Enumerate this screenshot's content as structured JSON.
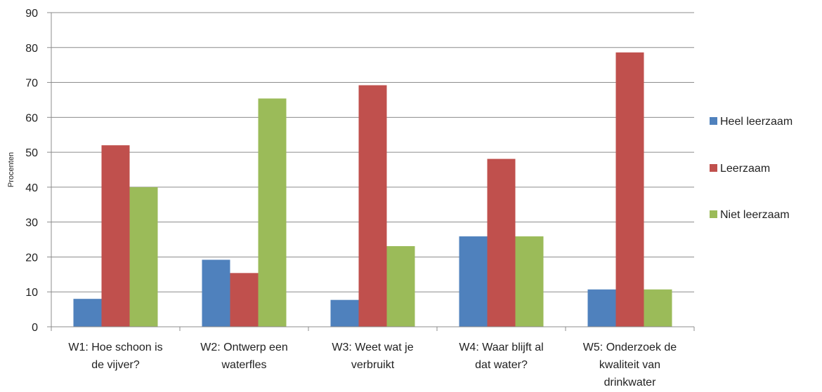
{
  "chart_data": {
    "type": "bar",
    "title": "",
    "xlabel": "",
    "ylabel": "Procenten",
    "ylim": [
      0,
      90
    ],
    "yticks": [
      0,
      10,
      20,
      30,
      40,
      50,
      60,
      70,
      80,
      90
    ],
    "grid": true,
    "legend_position": "right",
    "categories": [
      [
        "W1: Hoe schoon is",
        "de vijver?"
      ],
      [
        "W2: Ontwerp een",
        "waterfles"
      ],
      [
        "W3: Weet wat je",
        "verbruikt"
      ],
      [
        "W4: Waar blijft al",
        "dat water?"
      ],
      [
        "W5: Onderzoek de",
        "kwaliteit van",
        "drinkwater"
      ]
    ],
    "series": [
      {
        "name": "Heel leerzaam",
        "color": "#4F81BD",
        "values": [
          8,
          19.2,
          7.7,
          25.9,
          10.7
        ]
      },
      {
        "name": "Leerzaam",
        "color": "#C0504D",
        "values": [
          52,
          15.4,
          69.2,
          48.1,
          78.6
        ]
      },
      {
        "name": "Niet leerzaam",
        "color": "#9BBB59",
        "values": [
          40,
          65.4,
          23.1,
          25.9,
          10.7
        ]
      }
    ]
  }
}
